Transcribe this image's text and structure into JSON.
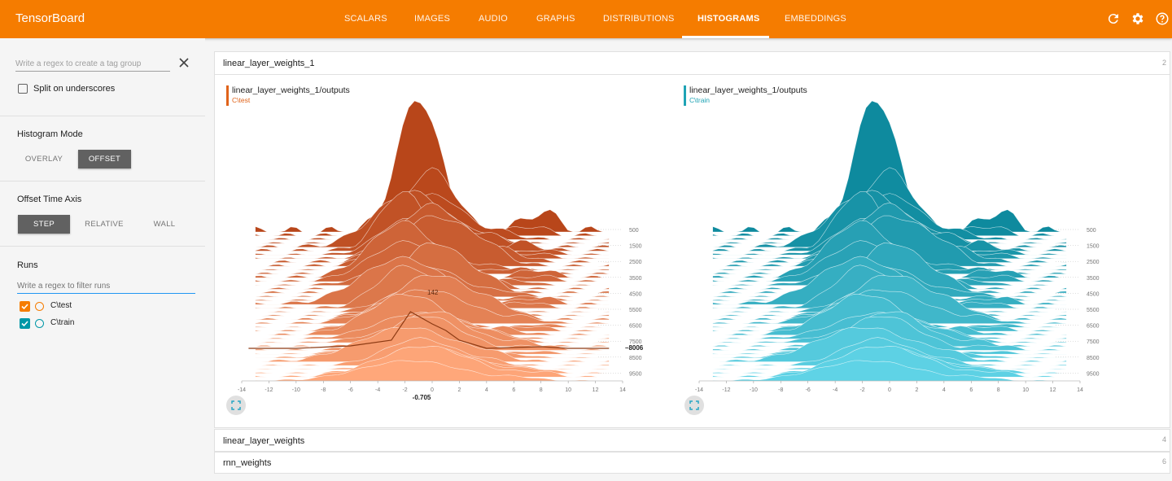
{
  "app": {
    "title": "TensorBoard"
  },
  "nav": {
    "tabs": [
      "SCALARS",
      "IMAGES",
      "AUDIO",
      "GRAPHS",
      "DISTRIBUTIONS",
      "HISTOGRAMS",
      "EMBEDDINGS"
    ],
    "active": "HISTOGRAMS",
    "icons": [
      "refresh-icon",
      "settings-icon",
      "help-icon"
    ]
  },
  "sidebar": {
    "tag_regex_placeholder": "Write a regex to create a tag group",
    "split_label": "Split on underscores",
    "split_checked": false,
    "histogram_mode": {
      "title": "Histogram Mode",
      "options": [
        "OVERLAY",
        "OFFSET"
      ],
      "selected": "OFFSET"
    },
    "time_axis": {
      "title": "Offset Time Axis",
      "options": [
        "STEP",
        "RELATIVE",
        "WALL"
      ],
      "selected": "STEP"
    },
    "runs": {
      "title": "Runs",
      "filter_placeholder": "Write a regex to filter runs",
      "items": [
        {
          "name": "C\\test",
          "checked": true,
          "color": "#f57c00"
        },
        {
          "name": "C\\train",
          "checked": true,
          "color": "#0097a7"
        }
      ]
    }
  },
  "groups": [
    {
      "name": "linear_layer_weights_1",
      "count": "2",
      "expanded": true
    },
    {
      "name": "linear_layer_weights",
      "count": "4",
      "expanded": false
    },
    {
      "name": "rnn_weights",
      "count": "6",
      "expanded": false
    }
  ],
  "cards": [
    {
      "tag": "linear_layer_weights_1/outputs",
      "run": "C\\test",
      "color": "#e0631a",
      "hover": {
        "x_value": "-0.705",
        "step": "8006",
        "count": "142"
      }
    },
    {
      "tag": "linear_layer_weights_1/outputs",
      "run": "C\\train",
      "color": "#1fa3b5"
    }
  ],
  "chart_axes": {
    "x_ticks": [
      "-14",
      "-12",
      "-10",
      "-8",
      "-6",
      "-4",
      "-2",
      "0",
      "2",
      "4",
      "6",
      "8",
      "10",
      "12",
      "14"
    ],
    "y_ticks": [
      "500",
      "1500",
      "2500",
      "3500",
      "4500",
      "5500",
      "6500",
      "7500",
      "8500",
      "9500"
    ]
  },
  "colors": {
    "accent": "#f57c00",
    "test": "#f57c00",
    "train": "#0097a7"
  }
}
